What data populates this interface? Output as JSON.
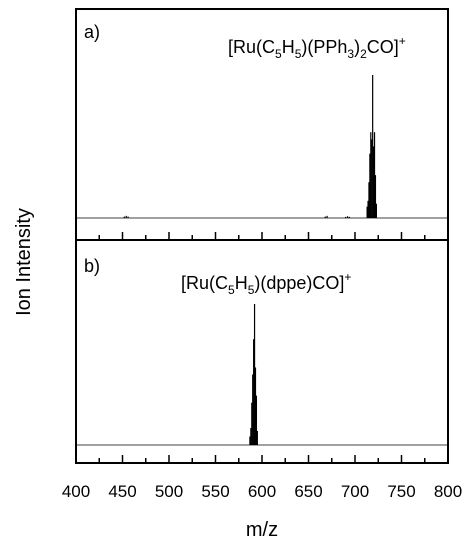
{
  "chart_data": {
    "type": "line",
    "xlabel": "m/z",
    "ylabel": "Ion Intensity",
    "xlim": [
      400,
      800
    ],
    "x_ticks": [
      400,
      450,
      500,
      550,
      600,
      650,
      700,
      750,
      800
    ],
    "ylim": [
      0,
      1
    ],
    "grid": false,
    "panels": [
      {
        "tag": "a)",
        "label_main": "[Ru(C",
        "label_sub1": "5",
        "label_mid1": "H",
        "label_sub2": "5",
        "label_mid2": ")(PPh",
        "label_sub3": "3",
        "label_mid3": ")",
        "label_sub4": "2",
        "label_end": "CO]",
        "label_sup": "+",
        "series": [
          {
            "x": [
              452,
              454,
              456,
              668,
              670,
              690,
              692,
              694,
              713,
              714,
              715,
              716,
              717,
              718,
              719,
              720,
              721,
              722,
              723
            ],
            "values": [
              0.01,
              0.015,
              0.01,
              0.01,
              0.015,
              0.008,
              0.012,
              0.008,
              0.08,
              0.12,
              0.25,
              0.45,
              0.6,
              0.55,
              1.0,
              0.5,
              0.6,
              0.3,
              0.1
            ]
          }
        ]
      },
      {
        "tag": "b)",
        "label_main": "[Ru(C",
        "label_sub1": "5",
        "label_mid1": "H",
        "label_sub2": "5",
        "label_end": ")(dppe)CO]",
        "label_sup": "+",
        "series": [
          {
            "x": [
              587,
              588,
              589,
              590,
              591,
              592,
              593,
              594,
              595
            ],
            "values": [
              0.06,
              0.12,
              0.3,
              0.5,
              0.75,
              1.0,
              0.55,
              0.35,
              0.1
            ]
          }
        ]
      }
    ]
  }
}
